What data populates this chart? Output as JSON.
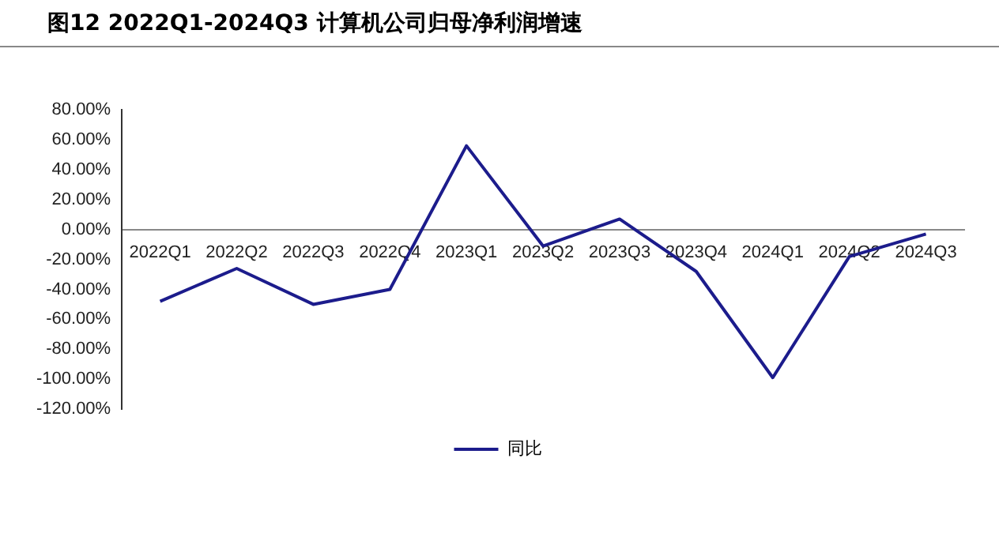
{
  "chart_data": {
    "type": "line",
    "title": "图12 2022Q1-2024Q3  计算机公司归母净利润增速",
    "categories": [
      "2022Q1",
      "2022Q2",
      "2022Q3",
      "2022Q4",
      "2023Q1",
      "2023Q2",
      "2023Q3",
      "2023Q4",
      "2024Q1",
      "2024Q2",
      "2024Q3"
    ],
    "series": [
      {
        "name": "同比",
        "color": "#1c1c8c",
        "values": [
          -48,
          -26,
          -50,
          -40,
          56,
          -11,
          7,
          -28,
          -99,
          -18,
          -3
        ]
      }
    ],
    "ylim": [
      -120,
      80
    ],
    "yticks": [
      {
        "value": -120,
        "label": "-120.00%"
      },
      {
        "value": -100,
        "label": "-100.00%"
      },
      {
        "value": -80,
        "label": "-80.00%"
      },
      {
        "value": -60,
        "label": "-60.00%"
      },
      {
        "value": -40,
        "label": "-40.00%"
      },
      {
        "value": -20,
        "label": "-20.00%"
      },
      {
        "value": 0,
        "label": "0.00%"
      },
      {
        "value": 20,
        "label": "20.00%"
      },
      {
        "value": 40,
        "label": "40.00%"
      },
      {
        "value": 60,
        "label": "60.00%"
      },
      {
        "value": 80,
        "label": "80.00%"
      }
    ],
    "grid": false,
    "legend": "bottom",
    "marker": "none",
    "line_style": "solid"
  }
}
